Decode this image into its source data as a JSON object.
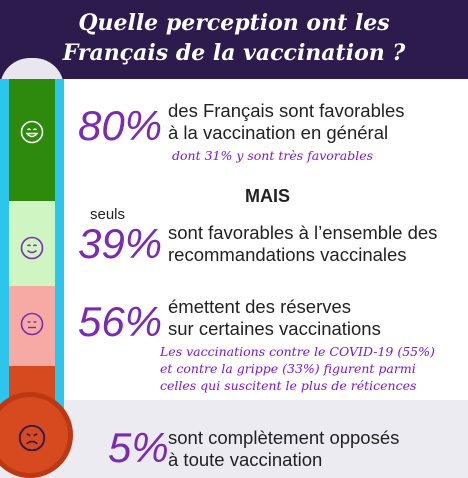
{
  "header": {
    "title_line1": "Quelle perception ont les",
    "title_line2": "Français de la vaccination ?"
  },
  "stats": [
    {
      "percent": "80%",
      "line1": "des Français sont favorables",
      "line2": "à la vaccination en général",
      "note": "dont 31% y sont très favorables",
      "face": "very-happy-face-icon"
    },
    {
      "percent": "39%",
      "prefix": "seuls",
      "line1": "sont favorables à l’ensemble des",
      "line2": "recommandations vaccinales",
      "face": "smiling-face-icon"
    },
    {
      "percent": "56%",
      "line1": "émettent des réserves",
      "line2": "sur certaines vaccinations",
      "note_line1": "Les vaccinations contre le COVID-19 (55%)",
      "note_line2": "et contre la grippe (33%) figurent parmi",
      "note_line3": "celles qui suscitent le plus de réticences",
      "face": "neutral-face-icon"
    },
    {
      "percent": "5%",
      "line1": "sont complètement opposés",
      "line2": "à toute vaccination",
      "face": "sad-face-icon"
    }
  ],
  "separator": "MAIS",
  "colors": {
    "header_bg": "#2d1b4d",
    "percent": "#7b2bb3",
    "note": "#7b17d6",
    "thermo_edge": "#2cc6ec",
    "green": "#2e8a0c",
    "light_green": "#cff5c3",
    "pink": "#f6aaa3",
    "red": "#d7491e"
  }
}
